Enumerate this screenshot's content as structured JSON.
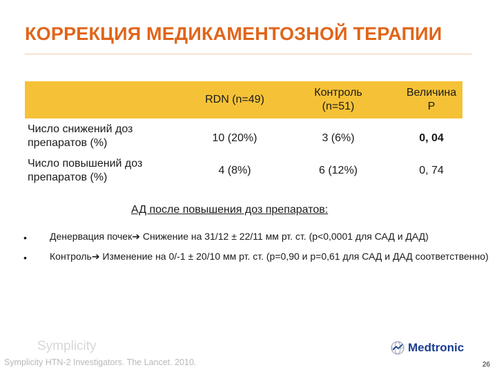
{
  "title": "КОРРЕКЦИЯ МЕДИКАМЕНТОЗНОЙ ТЕРАПИИ",
  "table": {
    "headers": [
      "RDN (n=49)",
      "Контроль\n(n=51)",
      "Величина\nP"
    ],
    "rows": [
      {
        "label": "Число снижений доз\nпрепаратов (%)",
        "cells": [
          "10 (20%)",
          "3 (6%)",
          "0, 04"
        ]
      },
      {
        "label": "Число повышений доз\nпрепаратов (%)",
        "cells": [
          "4 (8%)",
          "6 (12%)",
          "0, 74"
        ]
      }
    ]
  },
  "subheading": "АД после повышения доз препаратов:",
  "bullets": [
    {
      "marker": "•",
      "lead": "Денервация почек",
      "rest": " Снижение на 31/12 ± 22/11 мм рт. ст. (р<0,0001 для САД и ДАД)"
    },
    {
      "marker": "•",
      "lead": "Контроль",
      "rest": " Изменение на 0/-1 ± 20/10 мм рт. ст. (р=0,90 и р=0,61 для САД и ДАД соответственно)"
    }
  ],
  "arrow_icon": "right-arrow-icon",
  "brand": "Symplicity",
  "source": "Symplicity HTN-2 Investigators.  The Lancet. 2010.",
  "logo_text": "Medtronic",
  "page_number": "26",
  "colors": {
    "title": "#e0651a",
    "header_band": "#f5c237",
    "logo": "#1b3f8f"
  }
}
